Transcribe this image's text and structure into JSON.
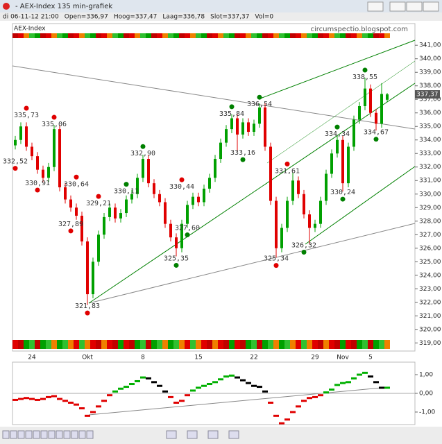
{
  "window": {
    "title": "- AEX-Index 135 min-grafiek",
    "info": [
      "di 06-11-12 21:00",
      "Open=336,97",
      "Hoog=337,47",
      "Laag=336,78",
      "Slot=337,37",
      "Vol=0"
    ],
    "watermark": "circumspectio.blogspot.com"
  },
  "chart_data": [
    {
      "type": "candlestick",
      "title": "AEX-Index",
      "categories": [
        null,
        null,
        null,
        "24",
        null,
        null,
        null,
        null,
        null,
        null,
        null,
        null,
        null,
        "Okt",
        null,
        null,
        null,
        null,
        null,
        null,
        null,
        null,
        null,
        "8",
        null,
        null,
        null,
        null,
        null,
        null,
        null,
        null,
        null,
        "15",
        null,
        null,
        null,
        null,
        null,
        null,
        null,
        null,
        null,
        "22",
        null,
        null,
        null,
        null,
        null,
        null,
        null,
        null,
        null,
        null,
        "29",
        null,
        null,
        null,
        null,
        "Nov",
        null,
        null,
        null,
        null,
        "5",
        null,
        null,
        null
      ],
      "open": [
        333.6,
        334.0,
        335.0,
        333.5,
        332.8,
        331.8,
        331.2,
        332.0,
        334.8,
        330.5,
        329.6,
        329.0,
        328.4,
        326.5,
        322.6,
        325.0,
        327.0,
        328.3,
        329.0,
        328.2,
        328.6,
        329.6,
        330.0,
        331.2,
        332.6,
        330.8,
        330.0,
        329.4,
        327.8,
        326.8,
        326.0,
        327.8,
        329.2,
        329.8,
        329.4,
        330.4,
        331.2,
        332.6,
        333.8,
        334.8,
        335.6,
        334.4,
        335.3,
        334.6,
        335.2,
        336.4,
        333.5,
        329.5,
        326.0,
        327.5,
        329.5,
        331.0,
        330.0,
        328.5,
        327.5,
        327.8,
        329.5,
        331.5,
        333.0,
        334.0,
        330.8,
        333.5,
        335.5,
        336.5,
        337.8,
        336.0,
        335.2,
        336.97
      ],
      "high": [
        334.3,
        335.3,
        335.3,
        333.8,
        333.1,
        332.1,
        332.3,
        335.1,
        335.1,
        330.8,
        329.9,
        329.3,
        328.7,
        326.8,
        325.3,
        327.3,
        328.6,
        329.3,
        329.3,
        328.9,
        329.9,
        330.3,
        331.5,
        332.9,
        332.9,
        331.1,
        330.3,
        329.7,
        328.1,
        327.1,
        328.1,
        329.5,
        330.1,
        330.1,
        330.7,
        331.5,
        332.9,
        334.1,
        335.1,
        335.9,
        335.9,
        335.6,
        335.6,
        335.5,
        336.7,
        336.7,
        333.8,
        329.8,
        327.8,
        329.8,
        331.6,
        331.3,
        330.3,
        328.8,
        328.1,
        329.8,
        331.8,
        333.3,
        334.3,
        334.3,
        333.8,
        335.8,
        336.8,
        338.6,
        338.1,
        336.3,
        338.2,
        337.47
      ],
      "low": [
        333.3,
        333.7,
        333.2,
        332.5,
        331.5,
        330.9,
        330.9,
        331.7,
        330.2,
        329.3,
        328.7,
        328.1,
        326.2,
        321.8,
        322.3,
        324.7,
        326.7,
        328.0,
        327.9,
        327.9,
        328.3,
        329.3,
        329.7,
        330.9,
        330.5,
        329.7,
        329.1,
        327.5,
        326.5,
        325.4,
        325.7,
        327.5,
        328.9,
        329.1,
        329.1,
        330.1,
        330.9,
        332.3,
        333.5,
        334.5,
        333.2,
        334.1,
        334.3,
        334.3,
        334.9,
        333.2,
        329.2,
        325.3,
        325.7,
        327.2,
        329.2,
        329.7,
        328.2,
        326.3,
        327.2,
        327.5,
        329.2,
        331.2,
        332.7,
        330.2,
        330.5,
        333.2,
        335.2,
        336.2,
        335.7,
        334.7,
        334.9,
        336.78
      ],
      "close": [
        334.0,
        335.0,
        333.5,
        332.8,
        331.8,
        331.2,
        332.0,
        334.8,
        330.5,
        329.6,
        329.0,
        328.4,
        326.5,
        322.6,
        325.0,
        327.0,
        328.3,
        329.0,
        328.2,
        328.6,
        329.6,
        330.0,
        331.2,
        332.6,
        330.8,
        330.0,
        329.4,
        327.8,
        326.8,
        326.0,
        327.8,
        329.2,
        329.8,
        329.4,
        330.4,
        331.2,
        332.6,
        333.8,
        334.8,
        335.6,
        334.4,
        335.3,
        334.6,
        335.2,
        336.4,
        333.5,
        329.5,
        326.0,
        327.5,
        329.5,
        331.0,
        330.0,
        328.5,
        327.5,
        327.8,
        329.5,
        331.5,
        333.0,
        334.0,
        330.8,
        333.5,
        335.5,
        336.5,
        337.8,
        336.0,
        335.2,
        337.4,
        337.37
      ],
      "up_color": "#00a000",
      "down_color": "#e00000",
      "ylim": [
        318.4,
        342.6
      ],
      "yticks": [
        {
          "value": 319,
          "label": "319,00"
        },
        {
          "value": 320,
          "label": "320,00"
        },
        {
          "value": 321,
          "label": "321,00"
        },
        {
          "value": 322,
          "label": "322,00"
        },
        {
          "value": 323,
          "label": "323,00"
        },
        {
          "value": 324,
          "label": "324,00"
        },
        {
          "value": 325,
          "label": "325,00"
        },
        {
          "value": 326,
          "label": "326,00"
        },
        {
          "value": 327,
          "label": "327,00"
        },
        {
          "value": 328,
          "label": "328,00"
        },
        {
          "value": 329,
          "label": "329,00"
        },
        {
          "value": 330,
          "label": "330,00"
        },
        {
          "value": 331,
          "label": "331,00"
        },
        {
          "value": 332,
          "label": "332,00"
        },
        {
          "value": 333,
          "label": "333,00"
        },
        {
          "value": 334,
          "label": "334,00"
        },
        {
          "value": 335,
          "label": "335,00"
        },
        {
          "value": 336,
          "label": "336,00"
        },
        {
          "value": 337,
          "label": "337,00"
        },
        {
          "value": 338,
          "label": "338,00"
        },
        {
          "value": 339,
          "label": "339,00"
        },
        {
          "value": 340,
          "label": "340,00"
        },
        {
          "value": 341,
          "label": "341,00"
        }
      ],
      "last": {
        "value": 337.37,
        "label": "337,37"
      },
      "annotations": [
        {
          "label": "335,73",
          "value": 335.73,
          "index": 2,
          "side": "above",
          "color": "#e00000"
        },
        {
          "label": "332,52",
          "value": 332.52,
          "index": 0,
          "side": "below",
          "color": "#e00000"
        },
        {
          "label": "335,06",
          "value": 335.06,
          "index": 7,
          "side": "above",
          "color": "#e00000"
        },
        {
          "label": "330,91",
          "value": 330.91,
          "index": 4,
          "side": "below",
          "color": "#e00000"
        },
        {
          "label": "330,64",
          "value": 330.64,
          "index": 11,
          "side": "above",
          "color": "#e00000"
        },
        {
          "label": "327,89",
          "value": 327.89,
          "index": 10,
          "side": "below",
          "color": "#e00000"
        },
        {
          "label": "329,21",
          "value": 329.21,
          "index": 15,
          "side": "above",
          "color": "#e00000"
        },
        {
          "label": "321,83",
          "value": 321.83,
          "index": 13,
          "side": "below",
          "color": "#e00000"
        },
        {
          "label": "332,90",
          "value": 332.9,
          "index": 23,
          "side": "above",
          "color": "#008000"
        },
        {
          "label": "330,11",
          "value": 330.11,
          "index": 20,
          "side": "above",
          "color": "#008000"
        },
        {
          "label": "330,44",
          "value": 330.44,
          "index": 30,
          "side": "above",
          "color": "#e00000"
        },
        {
          "label": "327,60",
          "value": 327.6,
          "index": 31,
          "side": "below",
          "color": "#008000"
        },
        {
          "label": "325,35",
          "value": 325.35,
          "index": 29,
          "side": "below",
          "color": "#008000"
        },
        {
          "label": "335,84",
          "value": 335.84,
          "index": 39,
          "side": "above",
          "color": "#008000"
        },
        {
          "label": "333,16",
          "value": 333.16,
          "index": 41,
          "side": "below",
          "color": "#008000"
        },
        {
          "label": "336,54",
          "value": 336.54,
          "index": 44,
          "side": "above",
          "color": "#008000"
        },
        {
          "label": "331,61",
          "value": 331.61,
          "index": 49,
          "side": "above",
          "color": "#e00000"
        },
        {
          "label": "325,34",
          "value": 325.34,
          "index": 47,
          "side": "below",
          "color": "#e00000"
        },
        {
          "label": "326,32",
          "value": 326.32,
          "index": 52,
          "side": "below",
          "color": "#008000"
        },
        {
          "label": "334,34",
          "value": 334.34,
          "index": 58,
          "side": "above",
          "color": "#008000"
        },
        {
          "label": "330,24",
          "value": 330.24,
          "index": 59,
          "side": "below",
          "color": "#008000"
        },
        {
          "label": "338,55",
          "value": 338.55,
          "index": 63,
          "side": "above",
          "color": "#008000"
        },
        {
          "label": "334,67",
          "value": 334.67,
          "index": 65,
          "side": "below",
          "color": "#008000"
        }
      ]
    },
    {
      "type": "oscillator",
      "values": [
        -0.35,
        -0.3,
        -0.25,
        -0.3,
        -0.35,
        -0.3,
        -0.2,
        -0.15,
        -0.3,
        -0.4,
        -0.5,
        -0.6,
        -0.8,
        -1.2,
        -1.0,
        -0.7,
        -0.4,
        -0.1,
        0.1,
        0.25,
        0.35,
        0.5,
        0.65,
        0.85,
        0.8,
        0.6,
        0.4,
        0.1,
        -0.2,
        -0.5,
        -0.4,
        -0.1,
        0.15,
        0.3,
        0.4,
        0.5,
        0.6,
        0.75,
        0.9,
        0.95,
        0.85,
        0.7,
        0.55,
        0.4,
        0.35,
        0.1,
        -0.5,
        -1.2,
        -1.6,
        -1.4,
        -1.0,
        -0.7,
        -0.4,
        -0.25,
        -0.2,
        -0.1,
        0.05,
        0.2,
        0.45,
        0.55,
        0.6,
        0.8,
        1.0,
        1.1,
        0.9,
        0.6,
        0.3,
        0.3
      ],
      "up_color": "#00b000",
      "down_color": "#000000",
      "negative_color": "#e00000",
      "ylim": [
        -1.67,
        1.67
      ],
      "yticks": [
        {
          "value": 1,
          "label": "1,00"
        },
        {
          "value": 0,
          "label": "0,00"
        },
        {
          "value": -1,
          "label": "-1,00"
        }
      ]
    }
  ]
}
